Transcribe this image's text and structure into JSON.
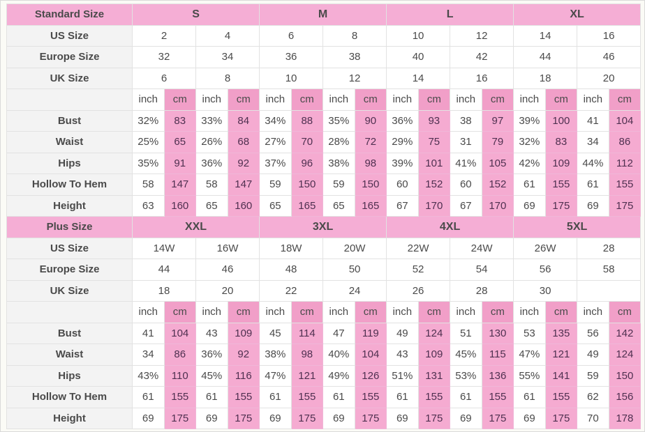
{
  "palette": {
    "header_pink": "#f5aed5",
    "cm_header_pink": "#f19fc8",
    "cm_cell_pink": "#f5abd1",
    "label_column_bg": "#f3f3f3",
    "label_text": "#1d1d1d",
    "number_text": "#4a4a4a",
    "number_text_on_pink": "#4f3050"
  },
  "sections": [
    {
      "title": "Standard Size",
      "groups": [
        "S",
        "M",
        "L",
        "XL"
      ],
      "size_rows": [
        {
          "label": "US Size",
          "values": [
            "2",
            "4",
            "6",
            "8",
            "10",
            "12",
            "14",
            "16"
          ]
        },
        {
          "label": "Europe Size",
          "values": [
            "32",
            "34",
            "36",
            "38",
            "40",
            "42",
            "44",
            "46"
          ]
        },
        {
          "label": "UK Size",
          "values": [
            "6",
            "8",
            "10",
            "12",
            "14",
            "16",
            "18",
            "20"
          ]
        }
      ],
      "units": {
        "inch": "inch",
        "cm": "cm"
      },
      "measure_rows": [
        {
          "label": "Bust",
          "values": [
            "32%",
            "83",
            "33%",
            "84",
            "34%",
            "88",
            "35%",
            "90",
            "36%",
            "93",
            "38",
            "97",
            "39%",
            "100",
            "41",
            "104"
          ]
        },
        {
          "label": "Waist",
          "values": [
            "25%",
            "65",
            "26%",
            "68",
            "27%",
            "70",
            "28%",
            "72",
            "29%",
            "75",
            "31",
            "79",
            "32%",
            "83",
            "34",
            "86"
          ]
        },
        {
          "label": "Hips",
          "values": [
            "35%",
            "91",
            "36%",
            "92",
            "37%",
            "96",
            "38%",
            "98",
            "39%",
            "101",
            "41%",
            "105",
            "42%",
            "109",
            "44%",
            "112"
          ]
        },
        {
          "label": "Hollow To Hem",
          "values": [
            "58",
            "147",
            "58",
            "147",
            "59",
            "150",
            "59",
            "150",
            "60",
            "152",
            "60",
            "152",
            "61",
            "155",
            "61",
            "155"
          ]
        },
        {
          "label": "Height",
          "values": [
            "63",
            "160",
            "65",
            "160",
            "65",
            "165",
            "65",
            "165",
            "67",
            "170",
            "67",
            "170",
            "69",
            "175",
            "69",
            "175"
          ]
        }
      ]
    },
    {
      "title": "Plus Size",
      "groups": [
        "XXL",
        "3XL",
        "4XL",
        "5XL"
      ],
      "size_rows": [
        {
          "label": "US Size",
          "values": [
            "14W",
            "16W",
            "18W",
            "20W",
            "22W",
            "24W",
            "26W",
            "28"
          ]
        },
        {
          "label": "Europe Size",
          "values": [
            "44",
            "46",
            "48",
            "50",
            "52",
            "54",
            "56",
            "58"
          ]
        },
        {
          "label": "UK Size",
          "values": [
            "18",
            "20",
            "22",
            "24",
            "26",
            "28",
            "30",
            ""
          ]
        }
      ],
      "units": {
        "inch": "inch",
        "cm": "cm"
      },
      "measure_rows": [
        {
          "label": "Bust",
          "values": [
            "41",
            "104",
            "43",
            "109",
            "45",
            "114",
            "47",
            "119",
            "49",
            "124",
            "51",
            "130",
            "53",
            "135",
            "56",
            "142"
          ]
        },
        {
          "label": "Waist",
          "values": [
            "34",
            "86",
            "36%",
            "92",
            "38%",
            "98",
            "40%",
            "104",
            "43",
            "109",
            "45%",
            "115",
            "47%",
            "121",
            "49",
            "124"
          ]
        },
        {
          "label": "Hips",
          "values": [
            "43%",
            "110",
            "45%",
            "116",
            "47%",
            "121",
            "49%",
            "126",
            "51%",
            "131",
            "53%",
            "136",
            "55%",
            "141",
            "59",
            "150"
          ]
        },
        {
          "label": "Hollow To Hem",
          "values": [
            "61",
            "155",
            "61",
            "155",
            "61",
            "155",
            "61",
            "155",
            "61",
            "155",
            "61",
            "155",
            "61",
            "155",
            "62",
            "156"
          ]
        },
        {
          "label": "Height",
          "values": [
            "69",
            "175",
            "69",
            "175",
            "69",
            "175",
            "69",
            "175",
            "69",
            "175",
            "69",
            "175",
            "69",
            "175",
            "70",
            "178"
          ]
        }
      ]
    }
  ]
}
